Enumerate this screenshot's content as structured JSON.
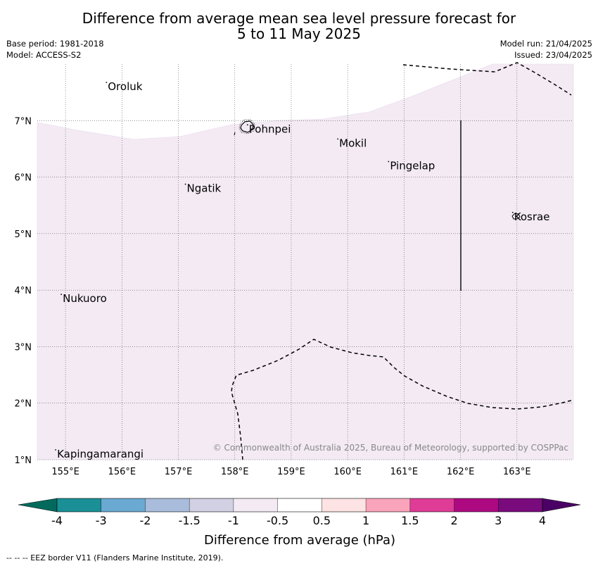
{
  "title": {
    "line1": "Difference from average mean sea level pressure forecast for",
    "line2": "5 to 11 May 2025"
  },
  "meta_left": {
    "base_period": "Base period: 1981-2018",
    "model": "Model: ACCESS-S2"
  },
  "meta_right": {
    "model_run": "Model run: 21/04/2025",
    "issued": "Issued: 23/04/2025"
  },
  "map": {
    "lon_range": [
      154.5,
      164.0
    ],
    "lat_range": [
      1.0,
      8.0
    ],
    "lon_ticks": [
      "155°E",
      "156°E",
      "157°E",
      "158°E",
      "159°E",
      "160°E",
      "161°E",
      "162°E",
      "163°E"
    ],
    "lat_ticks": [
      "7°N",
      "6°N",
      "5°N",
      "4°N",
      "3°N",
      "2°N",
      "1°N"
    ],
    "places": [
      {
        "name": "Oroluk",
        "lon": 155.75,
        "lat": 7.6
      },
      {
        "name": "Pohnpei",
        "lon": 158.25,
        "lat": 6.85
      },
      {
        "name": "Mokil",
        "lon": 159.85,
        "lat": 6.6
      },
      {
        "name": "Pingelap",
        "lon": 160.75,
        "lat": 6.2
      },
      {
        "name": "Ngatik",
        "lon": 157.15,
        "lat": 5.8
      },
      {
        "name": "Kosrae",
        "lon": 162.95,
        "lat": 5.3
      },
      {
        "name": "Nukuoro",
        "lon": 154.95,
        "lat": 3.85
      },
      {
        "name": "Kapingamarangi",
        "lon": 154.85,
        "lat": 1.1
      }
    ],
    "shaded_class": "-1 to -0.5",
    "shaded_color": "#f3eaf4",
    "copyright": "© Commonwealth of Australia 2025, Bureau of Meteorology, supported by COSPPac"
  },
  "colorbar": {
    "title": "Difference from average (hPa)",
    "tick_labels": [
      "-4",
      "-3",
      "-2",
      "-1.5",
      "-1",
      "-0.5",
      "0.5",
      "1",
      "1.5",
      "2",
      "3",
      "4"
    ],
    "colors": [
      "#1a9096",
      "#6aaad2",
      "#a9bcdc",
      "#d1d1e3",
      "#f3eaf4",
      "#ffffff",
      "#fde3e3",
      "#f9a4ba",
      "#de3c97",
      "#ad0981",
      "#7a0b7d"
    ],
    "under_color": "#016a5c",
    "over_color": "#4a0064"
  },
  "footnote": "--  --  -- EEZ border V11 (Flanders Marine Institute, 2019)."
}
